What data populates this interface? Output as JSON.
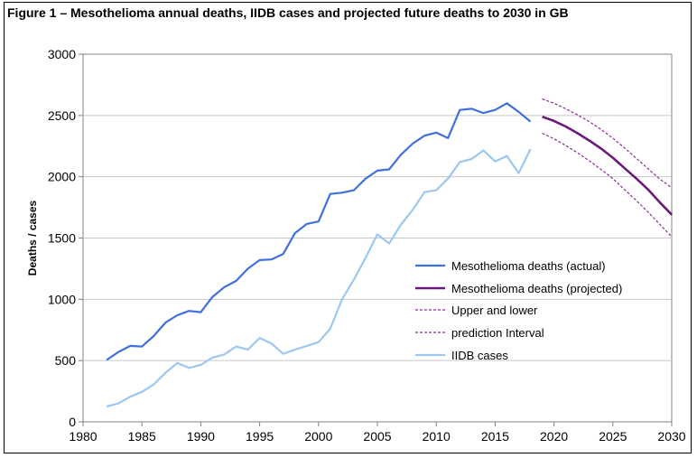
{
  "chart_data": {
    "type": "line",
    "title": "Figure 1 – Mesothelioma annual deaths, IIDB cases and projected future deaths to 2030 in GB",
    "ylabel": "Deaths / cases",
    "xlabel": "",
    "xlim": [
      1980,
      2030
    ],
    "ylim": [
      0,
      3000
    ],
    "x_ticks": [
      "1980",
      "1985",
      "1990",
      "1995",
      "2000",
      "2005",
      "2010",
      "2015",
      "2020",
      "2025",
      "2030"
    ],
    "y_ticks": [
      "0",
      "500",
      "1000",
      "1500",
      "2000",
      "2500",
      "3000"
    ],
    "grid": "horizontal",
    "legend_position": "center-right",
    "series": [
      {
        "name": "Mesothelioma deaths (actual)",
        "color": "#3f6fe0",
        "style": "solid",
        "x": [
          1982,
          1983,
          1984,
          1985,
          1986,
          1987,
          1988,
          1989,
          1990,
          1991,
          1992,
          1993,
          1994,
          1995,
          1996,
          1997,
          1998,
          1999,
          2000,
          2001,
          2002,
          2003,
          2004,
          2005,
          2006,
          2007,
          2008,
          2009,
          2010,
          2011,
          2012,
          2013,
          2014,
          2015,
          2016,
          2017,
          2018
        ],
        "values": [
          505,
          570,
          620,
          615,
          700,
          810,
          870,
          905,
          895,
          1020,
          1100,
          1150,
          1250,
          1320,
          1325,
          1370,
          1540,
          1615,
          1635,
          1860,
          1870,
          1890,
          1985,
          2050,
          2060,
          2180,
          2270,
          2335,
          2360,
          2315,
          2545,
          2555,
          2520,
          2545,
          2600,
          2530,
          2450
        ]
      },
      {
        "name": "Mesothelioma deaths (projected)",
        "color": "#6a1a7a",
        "style": "solid",
        "x": [
          2019,
          2020,
          2021,
          2022,
          2023,
          2024,
          2025,
          2026,
          2027,
          2028,
          2029,
          2030
        ],
        "values": [
          2490,
          2455,
          2410,
          2355,
          2295,
          2230,
          2155,
          2070,
          1985,
          1895,
          1790,
          1690
        ]
      },
      {
        "name": "Upper and lower",
        "color": "#8a2a99",
        "style": "dashed",
        "x": [
          2019,
          2020,
          2021,
          2022,
          2023,
          2024,
          2025,
          2026,
          2027,
          2028,
          2029,
          2030
        ],
        "values": [
          2635,
          2600,
          2555,
          2505,
          2450,
          2385,
          2315,
          2235,
          2150,
          2065,
          1980,
          1910
        ]
      },
      {
        "name": "prediction Interval",
        "color": "#8a2a99",
        "style": "dashed",
        "x": [
          2019,
          2020,
          2021,
          2022,
          2023,
          2024,
          2025,
          2026,
          2027,
          2028,
          2029,
          2030
        ],
        "values": [
          2355,
          2310,
          2255,
          2195,
          2130,
          2060,
          1985,
          1895,
          1805,
          1710,
          1610,
          1510
        ]
      },
      {
        "name": "IIDB cases",
        "color": "#9cc7f2",
        "style": "solid",
        "x": [
          1982,
          1983,
          1984,
          1985,
          1986,
          1987,
          1988,
          1989,
          1990,
          1991,
          1992,
          1993,
          1994,
          1995,
          1996,
          1997,
          1998,
          1999,
          2000,
          2001,
          2002,
          2003,
          2004,
          2005,
          2006,
          2007,
          2008,
          2009,
          2010,
          2011,
          2012,
          2013,
          2014,
          2015,
          2016,
          2017,
          2018
        ],
        "values": [
          125,
          150,
          205,
          245,
          305,
          400,
          480,
          440,
          465,
          525,
          550,
          615,
          590,
          685,
          640,
          555,
          590,
          620,
          650,
          760,
          1000,
          1160,
          1340,
          1530,
          1455,
          1610,
          1730,
          1875,
          1890,
          1985,
          2120,
          2145,
          2215,
          2125,
          2170,
          2030,
          2225
        ]
      }
    ]
  }
}
